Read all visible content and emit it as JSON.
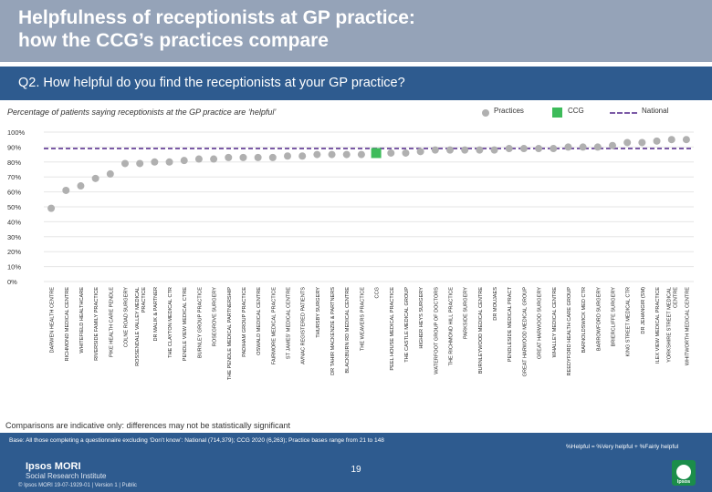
{
  "title_line1": "Helpfulness of receptionists at GP practice:",
  "title_line2": "how the CCG’s practices compare",
  "question": "Q2. How helpful do you find the receptionists at your GP practice?",
  "subtitle": "Percentage of patients saying receptionists at the GP practice are ‘helpful’",
  "legend": {
    "practices": "Practices",
    "ccg": "CCG",
    "national": "National"
  },
  "colors": {
    "practice": "#b0b0b0",
    "ccg": "#3dbb5a",
    "national": "#7b5aa6",
    "brand": "#2e5b8f",
    "title_band": "#95a3b8"
  },
  "chart_data": {
    "type": "scatter",
    "y_unit": "%",
    "ylim": [
      0,
      100
    ],
    "y_ticks": [
      0,
      10,
      20,
      30,
      40,
      50,
      60,
      70,
      80,
      90,
      100
    ],
    "y_tick_labels": [
      "0%",
      "10%",
      "20%",
      "30%",
      "40%",
      "50%",
      "60%",
      "70%",
      "80%",
      "90%",
      "100%"
    ],
    "national_value": 89,
    "highlight_label": "CCG",
    "categories": [
      "DARWEN HEALTH CENTRE",
      "RICHMOND MEDICAL CENTRE",
      "WHITEFIELD HEALTHCARE",
      "RIVERSIDE FAMILY PRACTICE",
      "PIKE HEALTH CARE PENDLE",
      "COLNE ROAD SURGERY",
      "ROSSENDALE VALLEY MEDICAL PRACTICE",
      "DR MALIK & PARTNER",
      "THE CLAYTON MEDICAL CTR",
      "PENDLE VIEW MEDICAL CTRE",
      "BURNLEY GROUP PRACTICE",
      "ROSEGROVE SURGERY",
      "THE PENDLE MEDICAL PARTNERSHIP",
      "PADIHAM GROUP PRACTICE",
      "OSWALD MEDICAL CENTRE",
      "FAIRMORE MEDICAL PRACTICE",
      "ST JAMES' MEDICAL CENTRE",
      "AVNAC REGISTERED PATIENTS",
      "THURSBY SURGERY",
      "DR TAHIR MACKENZIE & PARTNERS",
      "BLACKBURN RD MEDICAL CENTRE",
      "THE WEAVERS PRACTICE",
      "CCG",
      "PEEL HOUSE MEDICAL PRACTICE",
      "THE CASTLE MEDICAL GROUP",
      "HIGHER HEYS SURGERY",
      "WATERFOOT GROUP OF DOCTORS",
      "THE RICHMOND HILL PRACTICE",
      "PARKSIDE SURGERY",
      "BURNLEYWOOD MEDICAL CENTRE",
      "DR MOUJAES",
      "PENDLESIDE MEDICAL PRACT",
      "GREAT HARWOOD MEDICAL GROUP",
      "GREAT HARWOOD SURGERY",
      "WHALLEY MEDICAL CENTRE",
      "REEDYFORD HEALTH CARE GROUP",
      "BARNOLDSWICK MED CTR",
      "BARROWFORD SURGERY",
      "BRIERCLIFFE SURGERY",
      "KING STREET MEDICAL CTR",
      "DR JEHANGIR (SM)",
      "ILEX VIEW MEDICAL PRACTICE",
      "YORKSHIRE STREET MEDICAL CENTRE",
      "WHITWORTH MEDICAL CENTRE"
    ],
    "values": [
      49,
      61,
      64,
      69,
      72,
      79,
      79,
      80,
      80,
      81,
      82,
      82,
      83,
      83,
      83,
      83,
      84,
      84,
      85,
      85,
      85,
      85,
      86,
      86,
      86,
      87,
      88,
      88,
      88,
      88,
      88,
      89,
      89,
      89,
      89,
      90,
      90,
      90,
      91,
      93,
      93,
      94,
      95,
      95
    ]
  },
  "note": "Comparisons are indicative only: differences may not be statistically significant",
  "footer": {
    "base": "Base: All those completing a questionnaire excluding ‘Don’t know’: National (714,379); CCG 2020 (6,263); Practice bases range from 21 to 148",
    "helpful_def": "%Helpful = %Very helpful + %Fairly helpful",
    "logo_name": "Ipsos MORI",
    "logo_institute": "Social Research Institute",
    "copyright": "© Ipsos MORI     19-07-1929-01 | Version 1 | Public",
    "page_number": "19",
    "ipsos_badge": "Ipsos"
  }
}
